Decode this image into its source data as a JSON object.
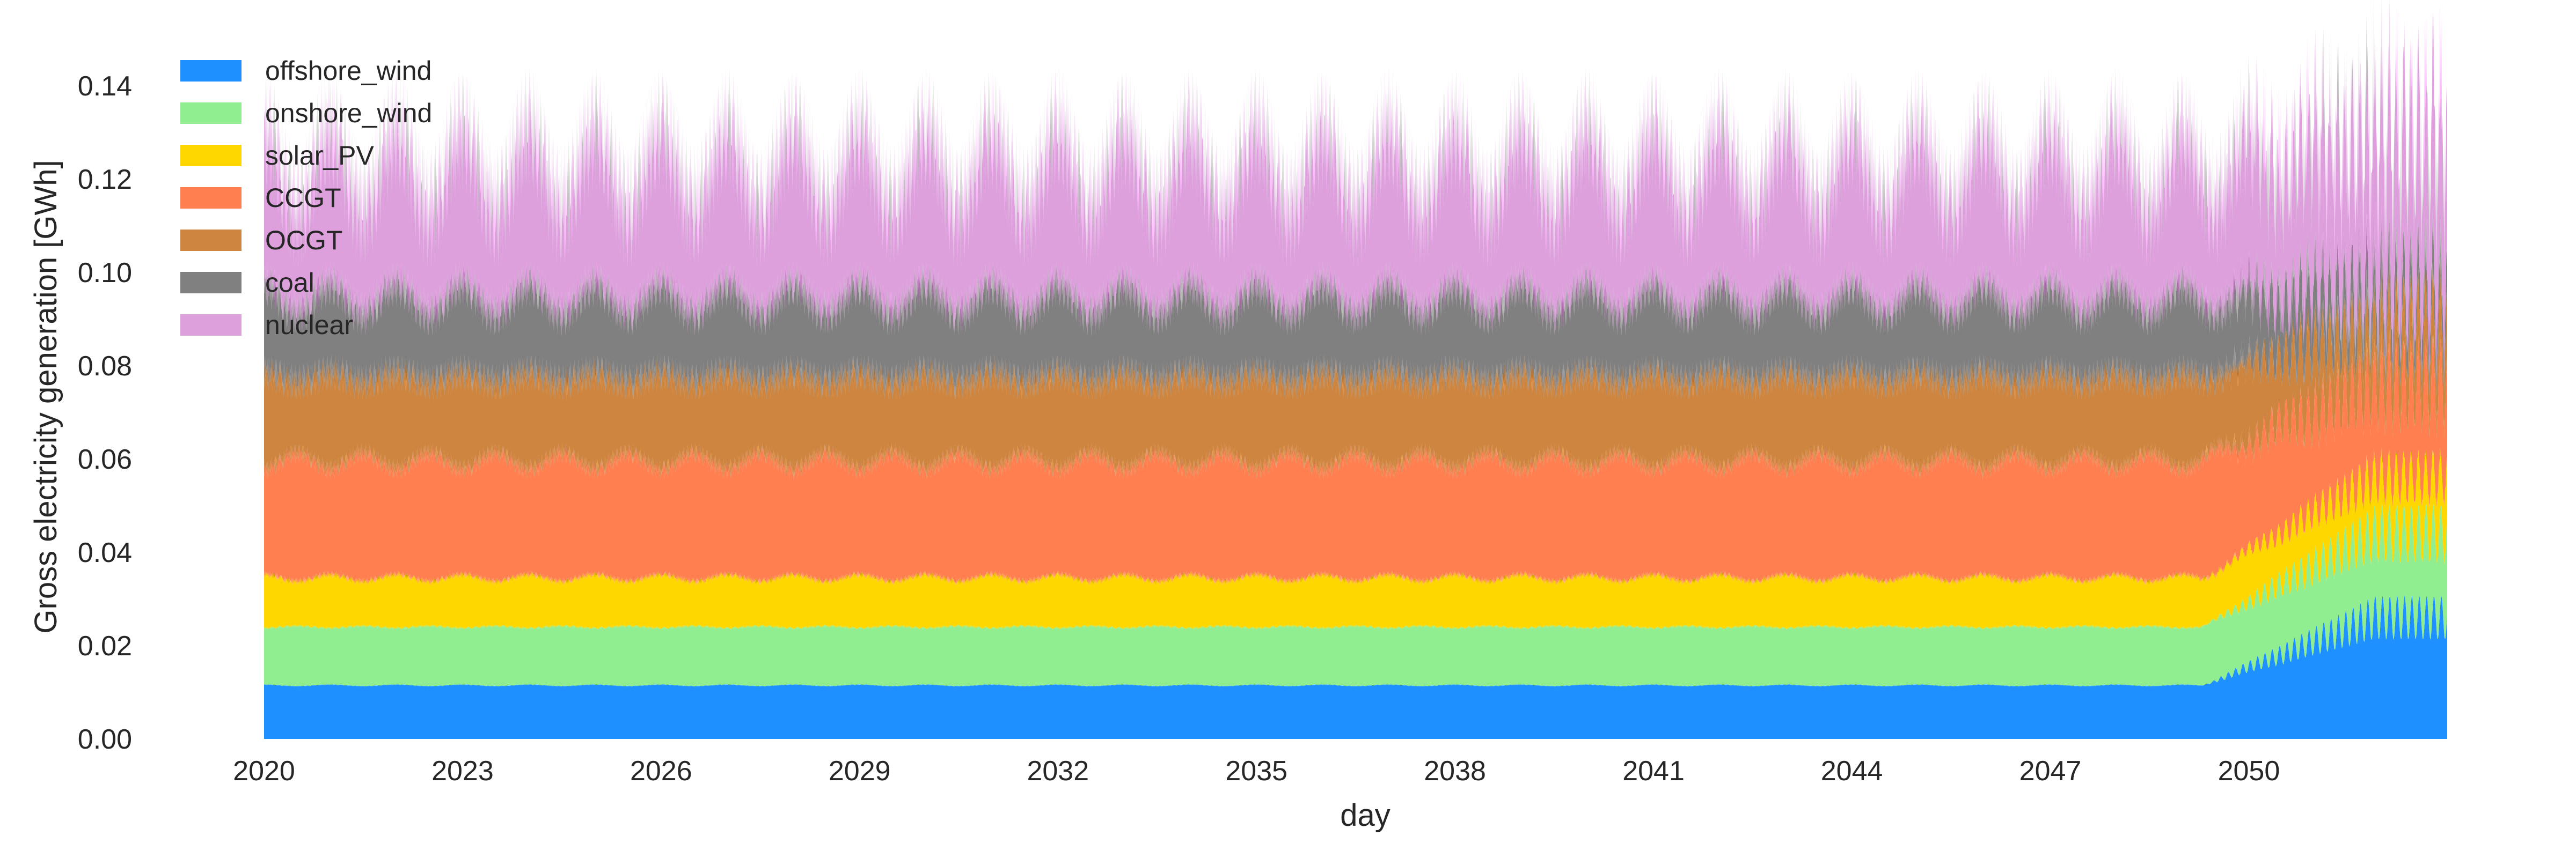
{
  "chart_data": {
    "type": "area",
    "stacked": true,
    "xlabel": "day",
    "ylabel": "Gross electricity generation [GWh]",
    "xlim": [
      "2020-01-01",
      "2052-12-31"
    ],
    "ylim": [
      0,
      0.143
    ],
    "x_ticks": [
      "2020",
      "2023",
      "2026",
      "2029",
      "2032",
      "2035",
      "2038",
      "2041",
      "2044",
      "2047",
      "2050"
    ],
    "y_ticks": [
      "0.00",
      "0.02",
      "0.04",
      "0.06",
      "0.08",
      "0.10",
      "0.12",
      "0.14"
    ],
    "grid": false,
    "legend_position": "top-left",
    "series": [
      {
        "name": "offshore_wind",
        "color": "#1e90ff",
        "values_2020_2049": [
          0.0115,
          0.0112,
          0.0118
        ],
        "values_2052": 0.026
      },
      {
        "name": "onshore_wind",
        "color": "#90ee90",
        "values_2020_2049": [
          0.0125,
          0.0118,
          0.0132
        ],
        "values_2052": 0.018
      },
      {
        "name": "solar_PV",
        "color": "#ffd700",
        "values_2020_2049": [
          0.0105,
          0.009,
          0.0125
        ],
        "values_2052": 0.012
      },
      {
        "name": "CCGT",
        "color": "#ff7f50",
        "values_2020_2049": [
          0.025,
          0.021,
          0.03
        ],
        "values_2052": 0.02
      },
      {
        "name": "OCGT",
        "color": "#cd853f",
        "values_2020_2049": [
          0.018,
          0.014,
          0.024
        ],
        "values_2052": 0.012
      },
      {
        "name": "coal",
        "color": "#808080",
        "values_2020_2049": [
          0.017,
          0.012,
          0.024
        ],
        "values_2052": 0.008
      },
      {
        "name": "nuclear",
        "color": "#dda0dd",
        "values_2020_2049": [
          0.028,
          0.016,
          0.046
        ],
        "values_2052": 0.034
      }
    ]
  }
}
